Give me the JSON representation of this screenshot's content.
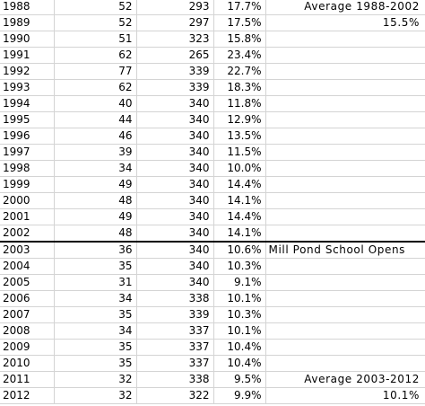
{
  "rows": [
    {
      "year": "1988",
      "a": "52",
      "b": "293",
      "pct": "17.7%",
      "note": "Average 1988-2002",
      "note_align": "right"
    },
    {
      "year": "1989",
      "a": "52",
      "b": "297",
      "pct": "17.5%",
      "note": "15.5%",
      "note_align": "right"
    },
    {
      "year": "1990",
      "a": "51",
      "b": "323",
      "pct": "15.8%",
      "note": "",
      "note_align": "right"
    },
    {
      "year": "1991",
      "a": "62",
      "b": "265",
      "pct": "23.4%",
      "note": "",
      "note_align": "right"
    },
    {
      "year": "1992",
      "a": "77",
      "b": "339",
      "pct": "22.7%",
      "note": "",
      "note_align": "right"
    },
    {
      "year": "1993",
      "a": "62",
      "b": "339",
      "pct": "18.3%",
      "note": "",
      "note_align": "right"
    },
    {
      "year": "1994",
      "a": "40",
      "b": "340",
      "pct": "11.8%",
      "note": "",
      "note_align": "right"
    },
    {
      "year": "1995",
      "a": "44",
      "b": "340",
      "pct": "12.9%",
      "note": "",
      "note_align": "right"
    },
    {
      "year": "1996",
      "a": "46",
      "b": "340",
      "pct": "13.5%",
      "note": "",
      "note_align": "right"
    },
    {
      "year": "1997",
      "a": "39",
      "b": "340",
      "pct": "11.5%",
      "note": "",
      "note_align": "right"
    },
    {
      "year": "1998",
      "a": "34",
      "b": "340",
      "pct": "10.0%",
      "note": "",
      "note_align": "right"
    },
    {
      "year": "1999",
      "a": "49",
      "b": "340",
      "pct": "14.4%",
      "note": "",
      "note_align": "right"
    },
    {
      "year": "2000",
      "a": "48",
      "b": "340",
      "pct": "14.1%",
      "note": "",
      "note_align": "right"
    },
    {
      "year": "2001",
      "a": "49",
      "b": "340",
      "pct": "14.4%",
      "note": "",
      "note_align": "right"
    },
    {
      "year": "2002",
      "a": "48",
      "b": "340",
      "pct": "14.1%",
      "note": "",
      "note_align": "right",
      "divider_after": true
    },
    {
      "year": "2003",
      "a": "36",
      "b": "340",
      "pct": "10.6%",
      "note": "Mill Pond School Opens",
      "note_align": "left"
    },
    {
      "year": "2004",
      "a": "35",
      "b": "340",
      "pct": "10.3%",
      "note": "",
      "note_align": "right"
    },
    {
      "year": "2005",
      "a": "31",
      "b": "340",
      "pct": "9.1%",
      "note": "",
      "note_align": "right"
    },
    {
      "year": "2006",
      "a": "34",
      "b": "338",
      "pct": "10.1%",
      "note": "",
      "note_align": "right"
    },
    {
      "year": "2007",
      "a": "35",
      "b": "339",
      "pct": "10.3%",
      "note": "",
      "note_align": "right"
    },
    {
      "year": "2008",
      "a": "34",
      "b": "337",
      "pct": "10.1%",
      "note": "",
      "note_align": "right"
    },
    {
      "year": "2009",
      "a": "35",
      "b": "337",
      "pct": "10.4%",
      "note": "",
      "note_align": "right"
    },
    {
      "year": "2010",
      "a": "35",
      "b": "337",
      "pct": "10.4%",
      "note": "",
      "note_align": "right"
    },
    {
      "year": "2011",
      "a": "32",
      "b": "338",
      "pct": "9.5%",
      "note": "Average 2003-2012",
      "note_align": "right"
    },
    {
      "year": "2012",
      "a": "32",
      "b": "322",
      "pct": "9.9%",
      "note": "10.1%",
      "note_align": "right"
    }
  ],
  "colors": {
    "gridline": "#d4d4d4",
    "divider": "#000000",
    "text": "#000000",
    "background": "#ffffff"
  }
}
